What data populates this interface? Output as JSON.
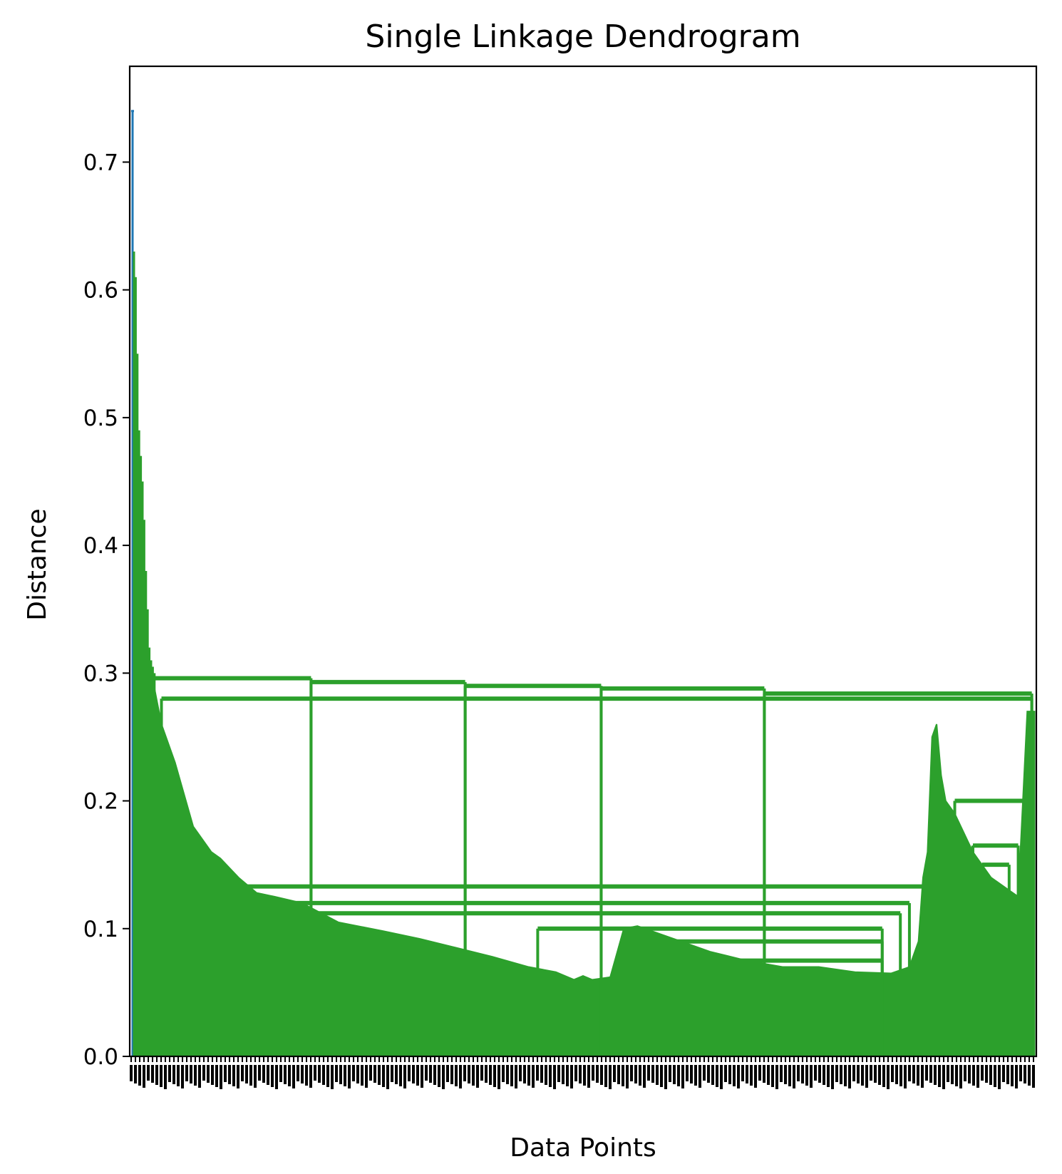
{
  "chart_data": {
    "type": "dendrogram",
    "title": "Single Linkage Dendrogram",
    "xlabel": "Data Points",
    "ylabel": "Distance",
    "ylim": [
      0.0,
      0.775
    ],
    "yticks": [
      0.0,
      0.1,
      0.2,
      0.3,
      0.4,
      0.5,
      0.6,
      0.7
    ],
    "ytick_labels": [
      "0.0",
      "0.1",
      "0.2",
      "0.3",
      "0.4",
      "0.5",
      "0.6",
      "0.7"
    ],
    "xtick_labels_note": "",
    "grid": false,
    "colors": {
      "above_threshold": "#1f77b4",
      "cluster": "#2ca02c",
      "axes": "#000000",
      "background": "#ffffff"
    },
    "top_merge_distances": [
      0.74,
      0.63,
      0.61,
      0.55,
      0.49,
      0.47,
      0.45,
      0.42,
      0.38,
      0.35,
      0.32,
      0.31,
      0.305,
      0.3
    ],
    "horizontal_merges": [
      {
        "x1": 0.02,
        "x2": 0.2,
        "y": 0.296
      },
      {
        "x1": 0.2,
        "x2": 0.37,
        "y": 0.293
      },
      {
        "x1": 0.37,
        "x2": 0.52,
        "y": 0.29
      },
      {
        "x1": 0.52,
        "x2": 0.7,
        "y": 0.288
      },
      {
        "x1": 0.7,
        "x2": 0.995,
        "y": 0.284
      },
      {
        "x1": 0.035,
        "x2": 0.995,
        "y": 0.28
      },
      {
        "x1": 0.12,
        "x2": 0.88,
        "y": 0.133
      },
      {
        "x1": 0.15,
        "x2": 0.86,
        "y": 0.12
      },
      {
        "x1": 0.2,
        "x2": 0.85,
        "y": 0.112
      },
      {
        "x1": 0.45,
        "x2": 0.83,
        "y": 0.1
      },
      {
        "x1": 0.56,
        "x2": 0.83,
        "y": 0.09
      },
      {
        "x1": 0.65,
        "x2": 0.83,
        "y": 0.075
      },
      {
        "x1": 0.91,
        "x2": 0.99,
        "y": 0.2
      },
      {
        "x1": 0.93,
        "x2": 0.98,
        "y": 0.165
      },
      {
        "x1": 0.94,
        "x2": 0.97,
        "y": 0.15
      }
    ]
  }
}
